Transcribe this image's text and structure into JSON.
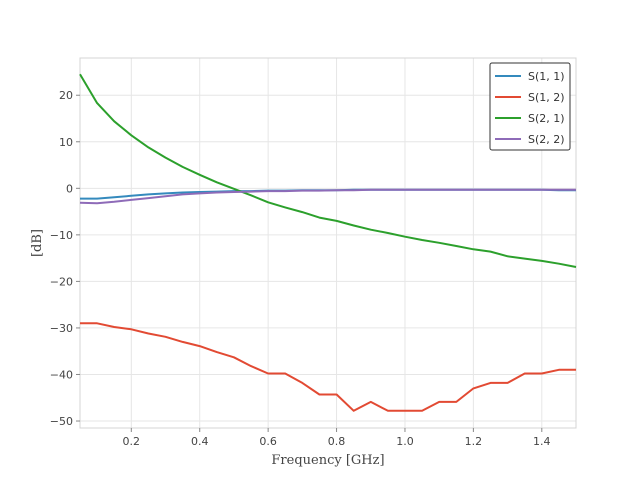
{
  "chart_data": {
    "type": "line",
    "title": "",
    "xlabel": "Frequency [GHz]",
    "ylabel": "[dB]",
    "xlim": [
      0.05,
      1.5
    ],
    "ylim": [
      -51.5,
      28
    ],
    "xticks": [
      0.2,
      0.4,
      0.6,
      0.8,
      1.0,
      1.2,
      1.4
    ],
    "xtick_labels": [
      "0.2",
      "0.4",
      "0.6",
      "0.8",
      "1.0",
      "1.2",
      "1.4"
    ],
    "yticks": [
      20,
      10,
      0,
      -10,
      -20,
      -30,
      -40,
      -50
    ],
    "ytick_labels": [
      "20",
      "10",
      "0",
      "−10",
      "−20",
      "−30",
      "−40",
      "−50"
    ],
    "grid": true,
    "legend_position": "top-right",
    "x": [
      0.05,
      0.1,
      0.15,
      0.2,
      0.25,
      0.3,
      0.35,
      0.4,
      0.45,
      0.5,
      0.55,
      0.6,
      0.65,
      0.7,
      0.75,
      0.8,
      0.85,
      0.9,
      0.95,
      1.0,
      1.05,
      1.1,
      1.15,
      1.2,
      1.25,
      1.3,
      1.35,
      1.4,
      1.45,
      1.5
    ],
    "series": [
      {
        "name": "S(1, 1)",
        "color": "#348ABD",
        "values": [
          -2.2,
          -2.2,
          -1.9,
          -1.6,
          -1.3,
          -1.1,
          -0.9,
          -0.8,
          -0.7,
          -0.6,
          -0.6,
          -0.5,
          -0.5,
          -0.4,
          -0.4,
          -0.4,
          -0.3,
          -0.3,
          -0.3,
          -0.3,
          -0.3,
          -0.3,
          -0.3,
          -0.3,
          -0.3,
          -0.3,
          -0.3,
          -0.3,
          -0.4,
          -0.4
        ]
      },
      {
        "name": "S(1, 2)",
        "color": "#E24A33",
        "values": [
          -29,
          -29,
          -29.8,
          -30.3,
          -31.2,
          -31.9,
          -33,
          -33.9,
          -35.2,
          -36.3,
          -38.2,
          -39.8,
          -39.8,
          -41.8,
          -44.3,
          -44.3,
          -47.8,
          -45.9,
          -47.8,
          -47.8,
          -47.8,
          -45.9,
          -45.9,
          -43,
          -41.8,
          -41.8,
          -39.8,
          -39.8,
          -39,
          -39
        ]
      },
      {
        "name": "S(2, 1)",
        "color": "#2CA02C",
        "values": [
          24.5,
          18.3,
          14.4,
          11.4,
          8.8,
          6.6,
          4.6,
          2.9,
          1.3,
          -0.1,
          -1.5,
          -3.0,
          -4.1,
          -5.1,
          -6.3,
          -7.0,
          -8.0,
          -8.9,
          -9.6,
          -10.4,
          -11.1,
          -11.7,
          -12.4,
          -13.1,
          -13.6,
          -14.6,
          -15.1,
          -15.6,
          -16.2,
          -16.9
        ]
      },
      {
        "name": "S(2, 2)",
        "color": "#8E6BB8",
        "values": [
          -3.1,
          -3.2,
          -2.9,
          -2.5,
          -2.1,
          -1.7,
          -1.3,
          -1.1,
          -0.9,
          -0.8,
          -0.7,
          -0.6,
          -0.6,
          -0.5,
          -0.5,
          -0.4,
          -0.4,
          -0.3,
          -0.3,
          -0.3,
          -0.3,
          -0.3,
          -0.3,
          -0.3,
          -0.3,
          -0.3,
          -0.3,
          -0.3,
          -0.3,
          -0.3
        ]
      }
    ]
  }
}
